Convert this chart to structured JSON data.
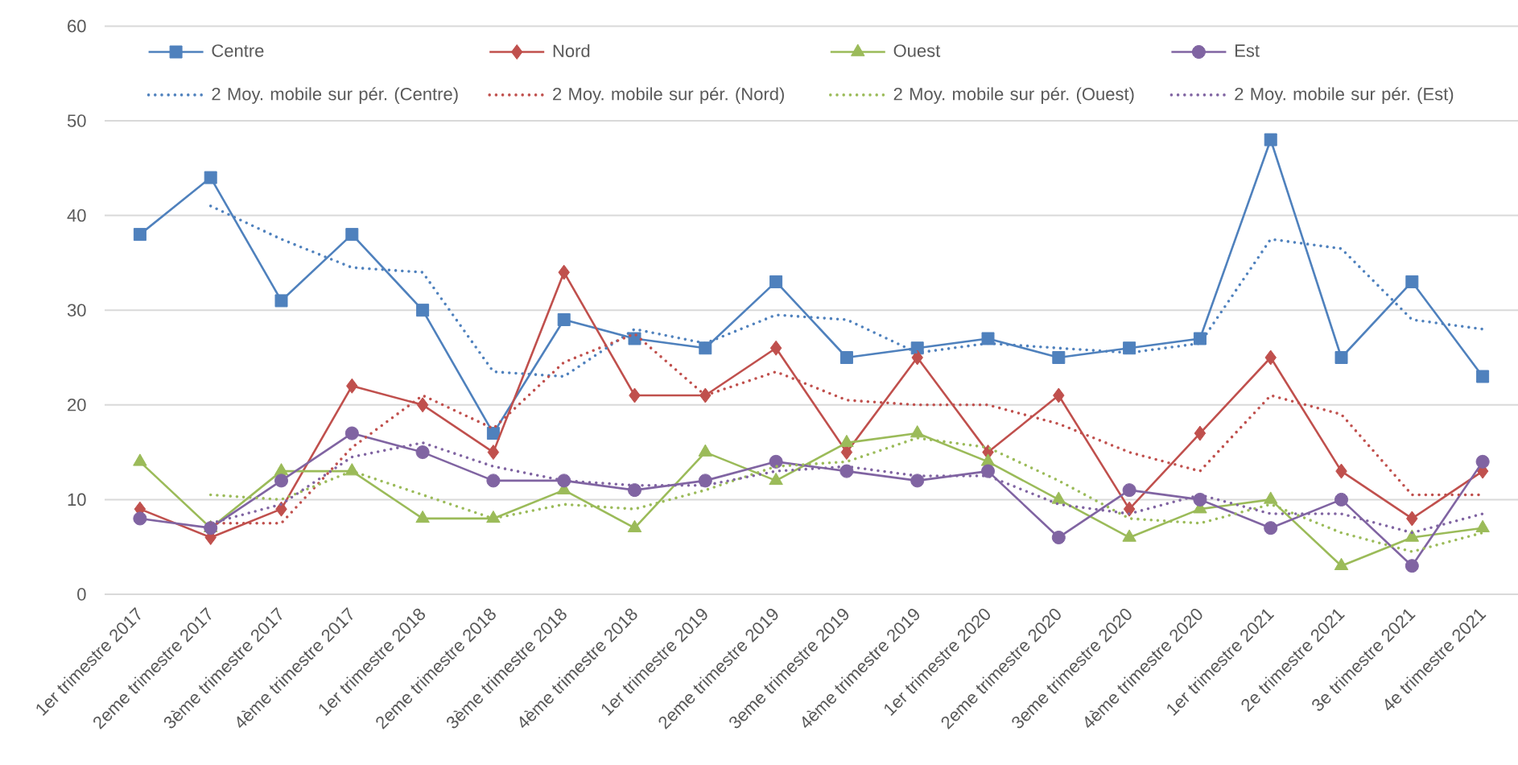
{
  "chart_data": {
    "type": "line",
    "categories": [
      "1er trimestre 2017",
      "2eme trimestre 2017",
      "3ème trimestre 2017",
      "4ème trimestre 2017",
      "1er trimestre 2018",
      "2eme trimestre 2018",
      "3ème trimestre 2018",
      "4ème trimestre 2018",
      "1er trimestre 2019",
      "2eme trimestre 2019",
      "3eme trimestre 2019",
      "4ème trimestre 2019",
      "1er trimestre 2020",
      "2eme trimestre 2020",
      "3eme trimestre 2020",
      "4ème trimestre 2020",
      "1er trimestre 2021",
      "2e trimestre 2021",
      "3e trimestre 2021",
      "4e trimestre 2021"
    ],
    "ylim": [
      0,
      60
    ],
    "yticks": [
      0,
      10,
      20,
      30,
      40,
      50,
      60
    ],
    "grid": "y",
    "legend": "top",
    "series": [
      {
        "name": "Centre",
        "color": "#4F81BD",
        "marker": "square",
        "line_style": "solid",
        "values": [
          38,
          44,
          31,
          38,
          30,
          17,
          29,
          27,
          26,
          33,
          25,
          26,
          27,
          25,
          26,
          27,
          48,
          25,
          33,
          23
        ]
      },
      {
        "name": "Nord",
        "color": "#C0504D",
        "marker": "diamond",
        "line_style": "solid",
        "values": [
          9,
          6,
          9,
          22,
          20,
          15,
          34,
          21,
          21,
          26,
          15,
          25,
          15,
          21,
          9,
          17,
          25,
          13,
          8,
          13
        ]
      },
      {
        "name": "Ouest",
        "color": "#9BBB59",
        "marker": "triangle",
        "line_style": "solid",
        "values": [
          14,
          7,
          13,
          13,
          8,
          8,
          11,
          7,
          15,
          12,
          16,
          17,
          14,
          10,
          6,
          9,
          10,
          3,
          6,
          7
        ]
      },
      {
        "name": "Est",
        "color": "#8064A2",
        "marker": "circle",
        "line_style": "solid",
        "values": [
          8,
          7,
          12,
          17,
          15,
          12,
          12,
          11,
          12,
          14,
          13,
          12,
          13,
          6,
          11,
          10,
          7,
          10,
          3,
          14
        ]
      },
      {
        "name": "2 Moy. mobile sur pér. (Centre)",
        "color": "#4F81BD",
        "marker": "none",
        "line_style": "dotted",
        "values": [
          null,
          41,
          37.5,
          34.5,
          34,
          23.5,
          23,
          28,
          26.5,
          29.5,
          29,
          25.5,
          26.5,
          26,
          25.5,
          26.5,
          37.5,
          36.5,
          29,
          28
        ]
      },
      {
        "name": "2 Moy. mobile sur pér. (Nord)",
        "color": "#C0504D",
        "marker": "none",
        "line_style": "dotted",
        "values": [
          null,
          7.5,
          7.5,
          15.5,
          21,
          17.5,
          24.5,
          27.5,
          21,
          23.5,
          20.5,
          20,
          20,
          18,
          15,
          13,
          21,
          19,
          10.5,
          10.5
        ]
      },
      {
        "name": "2 Moy. mobile sur pér. (Ouest)",
        "color": "#9BBB59",
        "marker": "none",
        "line_style": "dotted",
        "values": [
          null,
          10.5,
          10,
          13,
          10.5,
          8,
          9.5,
          9,
          11,
          13.5,
          14,
          16.5,
          15.5,
          12,
          8,
          7.5,
          9.5,
          6.5,
          4.5,
          6.5
        ]
      },
      {
        "name": "2 Moy. mobile sur pér. (Est)",
        "color": "#8064A2",
        "marker": "none",
        "line_style": "dotted",
        "values": [
          null,
          7.5,
          9.5,
          14.5,
          16,
          13.5,
          12,
          11.5,
          11.5,
          13,
          13.5,
          12.5,
          12.5,
          9.5,
          8.5,
          10.5,
          8.5,
          8.5,
          6.5,
          8.5
        ]
      }
    ]
  }
}
